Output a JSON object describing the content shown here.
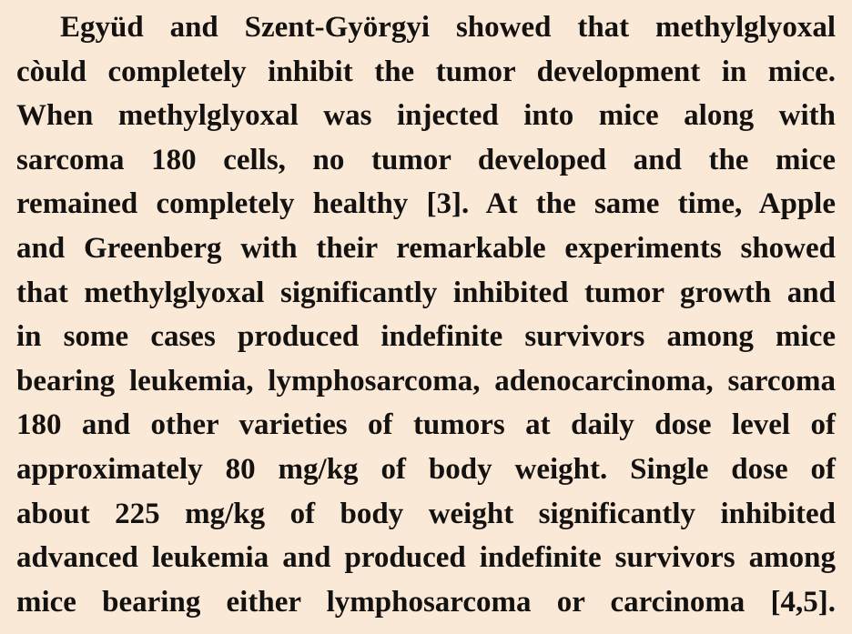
{
  "document": {
    "paragraph": {
      "lines": [
        "Együd and Szent-Györgyi showed that methylglyoxal",
        "còuld completely inhibit the tumor development in mice.",
        "When methylglyoxal was injected into mice along with",
        "sarcoma 180 cells, no tumor developed and the mice",
        "remained completely healthy [3]. At the same time, Apple",
        "and Greenberg with their remarkable experiments showed",
        "that methylglyoxal significantly inhibited tumor growth and",
        "in some cases produced indefinite survivors among mice",
        "bearing leukemia, lymphosarcoma, adenocarcinoma, sarcoma",
        "180 and other varieties of tumors at daily dose level of",
        "approximately 80 mg/kg of body weight. Single dose of",
        "about 225 mg/kg of body weight significantly inhibited",
        "advanced leukemia and produced indefinite survivors among",
        "mice bearing either lymphosarcoma or carcinoma [4,5]."
      ]
    }
  }
}
